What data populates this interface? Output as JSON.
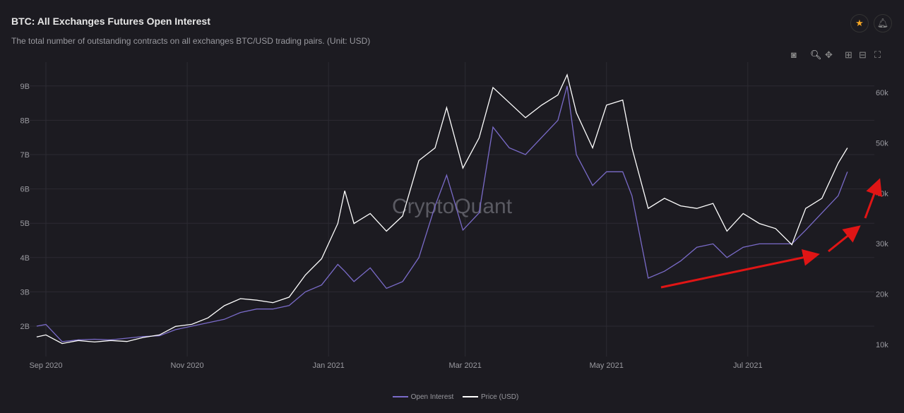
{
  "header": {
    "title": "BTC: All Exchanges Futures Open Interest",
    "subtitle": "The total number of outstanding contracts on all exchanges BTC/USD trading pairs. (Unit: USD)",
    "star_icon": "star-icon",
    "bell_icon": "bell-icon"
  },
  "toolbar": [
    "camera-icon",
    "zoom-icon",
    "pan-icon",
    "zoom-in-icon",
    "zoom-out-icon",
    "reset-icon"
  ],
  "watermark": "CryptoQuant",
  "colors": {
    "oi": "#7a6bc9",
    "price": "#ffffff",
    "arrow": "#e01515",
    "star": "#f5a623"
  },
  "chart_data": {
    "type": "line",
    "title": "BTC: All Exchanges Futures Open Interest",
    "x_ticks": [
      {
        "label": "Sep 2020",
        "date": "2020-09-01"
      },
      {
        "label": "Nov 2020",
        "date": "2020-11-01"
      },
      {
        "label": "Jan 2021",
        "date": "2021-01-01"
      },
      {
        "label": "Mar 2021",
        "date": "2021-03-01"
      },
      {
        "label": "May 2021",
        "date": "2021-05-01"
      },
      {
        "label": "Jul 2021",
        "date": "2021-07-01"
      }
    ],
    "y_left": {
      "ticks": [
        "2B",
        "3B",
        "4B",
        "5B",
        "6B",
        "7B",
        "8B",
        "9B"
      ],
      "values": [
        2,
        3,
        4,
        5,
        6,
        7,
        8,
        9
      ],
      "unit": "B"
    },
    "y_right": {
      "ticks": [
        "10k",
        "20k",
        "30k",
        "40k",
        "50k",
        "60k"
      ],
      "values": [
        10,
        20,
        30,
        40,
        50,
        60
      ],
      "unit": "k"
    },
    "x": [
      "2020-08-28",
      "2020-09-01",
      "2020-09-08",
      "2020-09-15",
      "2020-09-22",
      "2020-09-29",
      "2020-10-06",
      "2020-10-13",
      "2020-10-20",
      "2020-10-27",
      "2020-11-03",
      "2020-11-10",
      "2020-11-17",
      "2020-11-24",
      "2020-12-01",
      "2020-12-08",
      "2020-12-15",
      "2020-12-22",
      "2020-12-29",
      "2021-01-05",
      "2021-01-08",
      "2021-01-12",
      "2021-01-19",
      "2021-01-26",
      "2021-02-02",
      "2021-02-09",
      "2021-02-16",
      "2021-02-21",
      "2021-02-28",
      "2021-03-07",
      "2021-03-13",
      "2021-03-20",
      "2021-03-27",
      "2021-04-03",
      "2021-04-10",
      "2021-04-14",
      "2021-04-18",
      "2021-04-25",
      "2021-05-01",
      "2021-05-08",
      "2021-05-12",
      "2021-05-19",
      "2021-05-26",
      "2021-06-02",
      "2021-06-09",
      "2021-06-16",
      "2021-06-22",
      "2021-06-29",
      "2021-07-06",
      "2021-07-13",
      "2021-07-20",
      "2021-07-26",
      "2021-08-02",
      "2021-08-09",
      "2021-08-13"
    ],
    "series": [
      {
        "name": "Open Interest",
        "axis": "left",
        "values": [
          2.0,
          2.05,
          1.55,
          1.6,
          1.62,
          1.6,
          1.65,
          1.7,
          1.72,
          1.9,
          2.0,
          2.1,
          2.2,
          2.4,
          2.5,
          2.5,
          2.6,
          3.0,
          3.2,
          3.8,
          3.6,
          3.3,
          3.7,
          3.1,
          3.3,
          4.0,
          5.5,
          6.4,
          4.8,
          5.3,
          7.8,
          7.2,
          7.0,
          7.5,
          8.0,
          9.0,
          7.0,
          6.1,
          6.5,
          6.5,
          5.8,
          3.4,
          3.6,
          3.9,
          4.3,
          4.4,
          4.0,
          4.3,
          4.4,
          4.4,
          4.4,
          4.8,
          5.3,
          5.8,
          6.5
        ]
      },
      {
        "name": "Price (USD)",
        "axis": "right",
        "values": [
          11.5,
          11.9,
          10.2,
          10.8,
          10.5,
          10.8,
          10.6,
          11.4,
          11.9,
          13.6,
          14.0,
          15.3,
          17.7,
          19.1,
          18.8,
          18.3,
          19.4,
          23.8,
          27.0,
          34.0,
          40.5,
          34.0,
          36.0,
          32.5,
          35.5,
          46.5,
          49.0,
          57.0,
          45.0,
          51.0,
          61.0,
          58.0,
          55.0,
          57.5,
          59.5,
          63.5,
          56.0,
          49.0,
          57.5,
          58.5,
          49.0,
          37.0,
          39.0,
          37.5,
          37.0,
          38.0,
          32.5,
          36.0,
          34.0,
          33.0,
          29.8,
          37.0,
          39.0,
          46.0,
          49.0
        ]
      }
    ],
    "legend": {
      "position": "bottom",
      "entries": [
        "Open Interest",
        "Price (USD)"
      ]
    }
  }
}
